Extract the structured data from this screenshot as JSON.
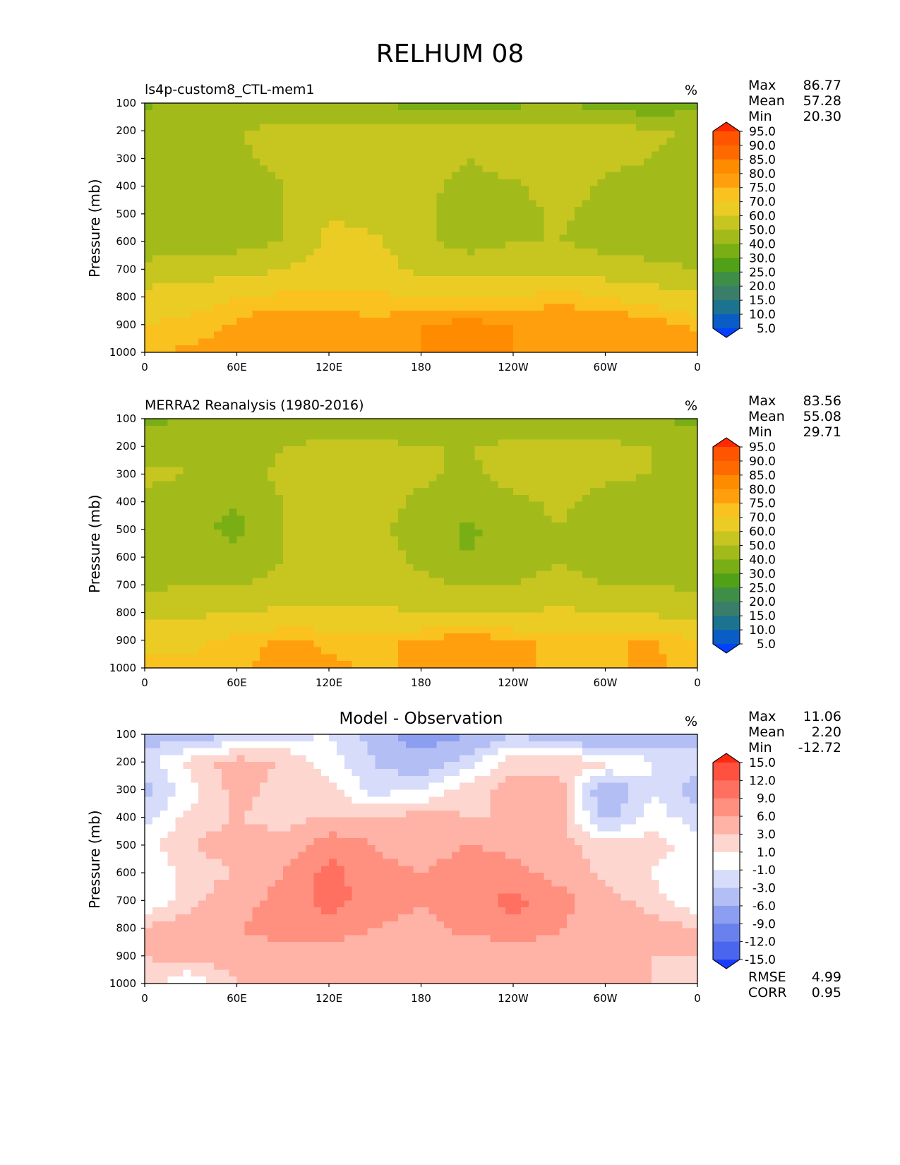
{
  "title": "RELHUM 08",
  "panels": [
    {
      "id": "model",
      "subtitle_left": "ls4p-custom8_CTL-mem1",
      "subtitle_center": "",
      "units": "%",
      "stats": [
        {
          "label": "Max",
          "value": "86.77"
        },
        {
          "label": "Mean",
          "value": "57.28"
        },
        {
          "label": "Min",
          "value": "20.30"
        }
      ],
      "colorbar": {
        "labels": [
          "95.0",
          "90.0",
          "85.0",
          "80.0",
          "75.0",
          "70.0",
          "60.0",
          "50.0",
          "40.0",
          "30.0",
          "25.0",
          "20.0",
          "15.0",
          "10.0",
          "5.0"
        ],
        "colors": [
          "#ff2a00",
          "#ff5500",
          "#ff6a00",
          "#ff8c00",
          "#ff9f0e",
          "#f9c21e",
          "#ebcc25",
          "#c7c520",
          "#a2bb1a",
          "#7aae15",
          "#50a018",
          "#3e8e48",
          "#3a7e6a",
          "#1b7390",
          "#0a5dc4",
          "#0040ff"
        ]
      },
      "extra_stats": []
    },
    {
      "id": "obs",
      "subtitle_left": "MERRA2 Reanalysis (1980-2016)",
      "subtitle_center": "",
      "units": "%",
      "stats": [
        {
          "label": "Max",
          "value": "83.56"
        },
        {
          "label": "Mean",
          "value": "55.08"
        },
        {
          "label": "Min",
          "value": "29.71"
        }
      ],
      "colorbar": {
        "labels": [
          "95.0",
          "90.0",
          "85.0",
          "80.0",
          "75.0",
          "70.0",
          "60.0",
          "50.0",
          "40.0",
          "30.0",
          "25.0",
          "20.0",
          "15.0",
          "10.0",
          "5.0"
        ],
        "colors": [
          "#ff2a00",
          "#ff5500",
          "#ff6a00",
          "#ff8c00",
          "#ff9f0e",
          "#f9c21e",
          "#ebcc25",
          "#c7c520",
          "#a2bb1a",
          "#7aae15",
          "#50a018",
          "#3e8e48",
          "#3a7e6a",
          "#1b7390",
          "#0a5dc4",
          "#0040ff"
        ]
      },
      "extra_stats": []
    },
    {
      "id": "diff",
      "subtitle_left": "",
      "subtitle_center": "Model - Observation",
      "units": "%",
      "stats": [
        {
          "label": "Max",
          "value": "11.06"
        },
        {
          "label": "Mean",
          "value": "2.20"
        },
        {
          "label": "Min",
          "value": "-12.72"
        }
      ],
      "colorbar": {
        "labels": [
          "15.0",
          "12.0",
          "9.0",
          "6.0",
          "3.0",
          "1.0",
          "-1.0",
          "-3.0",
          "-6.0",
          "-9.0",
          "-12.0",
          "-15.0"
        ],
        "colors": [
          "#ff2a10",
          "#ff5040",
          "#ff7060",
          "#ff9080",
          "#ffb2a6",
          "#fdd6d0",
          "#ffffff",
          "#d6dcfa",
          "#b3bff4",
          "#8c9ef0",
          "#6a80ec",
          "#4a66ee",
          "#1a3cff"
        ]
      },
      "extra_stats": [
        {
          "label": "RMSE",
          "value": "4.99"
        },
        {
          "label": "CORR",
          "value": "0.95"
        }
      ]
    }
  ],
  "chart_data": [
    {
      "type": "heatmap",
      "title": "ls4p-custom8_CTL-mem1",
      "variable": "RELHUM",
      "units": "%",
      "ylabel": "Pressure (mb)",
      "xlabel": "",
      "x_ticks": [
        "0",
        "60E",
        "120E",
        "180",
        "120W",
        "60W",
        "0"
      ],
      "y_ticks": [
        "100",
        "200",
        "300",
        "400",
        "500",
        "600",
        "700",
        "800",
        "900",
        "1000"
      ],
      "x_range": [
        0,
        360
      ],
      "y_range": [
        1000,
        100
      ],
      "levels": [
        5,
        10,
        15,
        20,
        25,
        30,
        40,
        50,
        60,
        70,
        75,
        80,
        85,
        90,
        95
      ],
      "lon": [
        0,
        30,
        60,
        90,
        120,
        150,
        180,
        210,
        240,
        270,
        300,
        330,
        360
      ],
      "plev": [
        100,
        200,
        300,
        400,
        500,
        600,
        700,
        800,
        900,
        1000
      ],
      "values": [
        [
          38,
          42,
          44,
          42,
          44,
          40,
          36,
          36,
          38,
          40,
          36,
          30,
          38
        ],
        [
          48,
          50,
          50,
          52,
          52,
          52,
          52,
          52,
          52,
          54,
          54,
          52,
          48
        ],
        [
          46,
          48,
          48,
          54,
          56,
          56,
          56,
          50,
          56,
          60,
          52,
          50,
          46
        ],
        [
          46,
          46,
          42,
          50,
          56,
          56,
          54,
          46,
          48,
          56,
          48,
          46,
          44
        ],
        [
          46,
          46,
          44,
          50,
          60,
          56,
          52,
          44,
          46,
          52,
          46,
          44,
          46
        ],
        [
          46,
          46,
          46,
          50,
          62,
          62,
          52,
          46,
          50,
          50,
          46,
          46,
          46
        ],
        [
          52,
          54,
          56,
          60,
          64,
          64,
          58,
          56,
          56,
          58,
          54,
          52,
          50
        ],
        [
          64,
          66,
          70,
          72,
          72,
          72,
          70,
          70,
          70,
          74,
          70,
          66,
          62
        ],
        [
          70,
          72,
          76,
          80,
          78,
          76,
          80,
          82,
          80,
          78,
          80,
          78,
          74
        ],
        [
          74,
          76,
          78,
          80,
          80,
          78,
          80,
          80,
          80,
          78,
          80,
          80,
          78
        ]
      ]
    },
    {
      "type": "heatmap",
      "title": "MERRA2 Reanalysis (1980-2016)",
      "variable": "RELHUM",
      "units": "%",
      "ylabel": "Pressure (mb)",
      "xlabel": "",
      "x_ticks": [
        "0",
        "60E",
        "120E",
        "180",
        "120W",
        "60W",
        "0"
      ],
      "y_ticks": [
        "100",
        "200",
        "300",
        "400",
        "500",
        "600",
        "700",
        "800",
        "900",
        "1000"
      ],
      "x_range": [
        0,
        360
      ],
      "y_range": [
        1000,
        100
      ],
      "levels": [
        5,
        10,
        15,
        20,
        25,
        30,
        40,
        50,
        60,
        70,
        75,
        80,
        85,
        90,
        95
      ],
      "lon": [
        0,
        30,
        60,
        90,
        120,
        150,
        180,
        210,
        240,
        270,
        300,
        330,
        360
      ],
      "plev": [
        100,
        200,
        300,
        400,
        500,
        600,
        700,
        800,
        900,
        1000
      ],
      "values": [
        [
          38,
          40,
          42,
          44,
          44,
          42,
          42,
          42,
          40,
          40,
          40,
          40,
          38
        ],
        [
          46,
          48,
          46,
          50,
          52,
          52,
          50,
          50,
          52,
          52,
          52,
          50,
          46
        ],
        [
          52,
          50,
          46,
          52,
          54,
          54,
          52,
          48,
          54,
          58,
          52,
          50,
          50
        ],
        [
          48,
          44,
          40,
          50,
          54,
          54,
          48,
          44,
          48,
          52,
          46,
          44,
          46
        ],
        [
          46,
          42,
          38,
          50,
          52,
          52,
          46,
          38,
          44,
          50,
          44,
          40,
          46
        ],
        [
          46,
          44,
          42,
          50,
          52,
          54,
          48,
          40,
          46,
          50,
          46,
          46,
          46
        ],
        [
          48,
          50,
          50,
          52,
          54,
          56,
          52,
          50,
          50,
          52,
          50,
          50,
          48
        ],
        [
          56,
          58,
          60,
          62,
          62,
          62,
          60,
          60,
          60,
          62,
          60,
          58,
          56
        ],
        [
          68,
          68,
          72,
          76,
          74,
          74,
          76,
          78,
          76,
          74,
          74,
          76,
          70
        ],
        [
          72,
          72,
          74,
          78,
          76,
          74,
          76,
          76,
          76,
          74,
          74,
          76,
          74
        ]
      ]
    },
    {
      "type": "heatmap",
      "title": "Model - Observation",
      "variable": "RELHUM difference",
      "units": "%",
      "ylabel": "Pressure (mb)",
      "xlabel": "",
      "x_ticks": [
        "0",
        "60E",
        "120E",
        "180",
        "120W",
        "60W",
        "0"
      ],
      "y_ticks": [
        "100",
        "200",
        "300",
        "400",
        "500",
        "600",
        "700",
        "800",
        "900",
        "1000"
      ],
      "x_range": [
        0,
        360
      ],
      "y_range": [
        1000,
        100
      ],
      "levels": [
        -15,
        -12,
        -9,
        -6,
        -3,
        -1,
        1,
        3,
        6,
        9,
        12,
        15
      ],
      "rmse": 4.99,
      "corr": 0.95,
      "lon": [
        0,
        30,
        60,
        90,
        120,
        150,
        180,
        210,
        240,
        270,
        300,
        330,
        360
      ],
      "plev": [
        100,
        200,
        300,
        400,
        500,
        600,
        700,
        800,
        900,
        1000
      ],
      "values": [
        [
          -4,
          -5,
          -3,
          -2,
          -1,
          -4,
          -8,
          -6,
          -3,
          -5,
          -7,
          -6,
          -4
        ],
        [
          -2,
          2,
          4,
          3,
          0,
          -3,
          -5,
          -2,
          2,
          2,
          2,
          -1,
          -2
        ],
        [
          -4,
          0,
          4,
          2,
          2,
          -2,
          -1,
          2,
          4,
          4,
          -6,
          -1,
          -4
        ],
        [
          -2,
          2,
          3,
          2,
          3,
          3,
          4,
          3,
          3,
          4,
          -4,
          0,
          -2
        ],
        [
          0,
          3,
          4,
          4,
          8,
          6,
          4,
          6,
          5,
          4,
          2,
          2,
          0
        ],
        [
          -1,
          2,
          3,
          6,
          10,
          7,
          6,
          8,
          7,
          5,
          2,
          1,
          -1
        ],
        [
          -1,
          2,
          5,
          7,
          10,
          8,
          6,
          8,
          10,
          7,
          4,
          2,
          -1
        ],
        [
          3,
          5,
          6,
          7,
          8,
          6,
          5,
          7,
          8,
          6,
          5,
          4,
          3
        ],
        [
          3,
          4,
          4,
          5,
          4,
          4,
          6,
          3,
          4,
          5,
          5,
          3,
          3
        ],
        [
          2,
          -1,
          3,
          3,
          4,
          4,
          3,
          3,
          4,
          4,
          4,
          3,
          2
        ]
      ]
    }
  ]
}
